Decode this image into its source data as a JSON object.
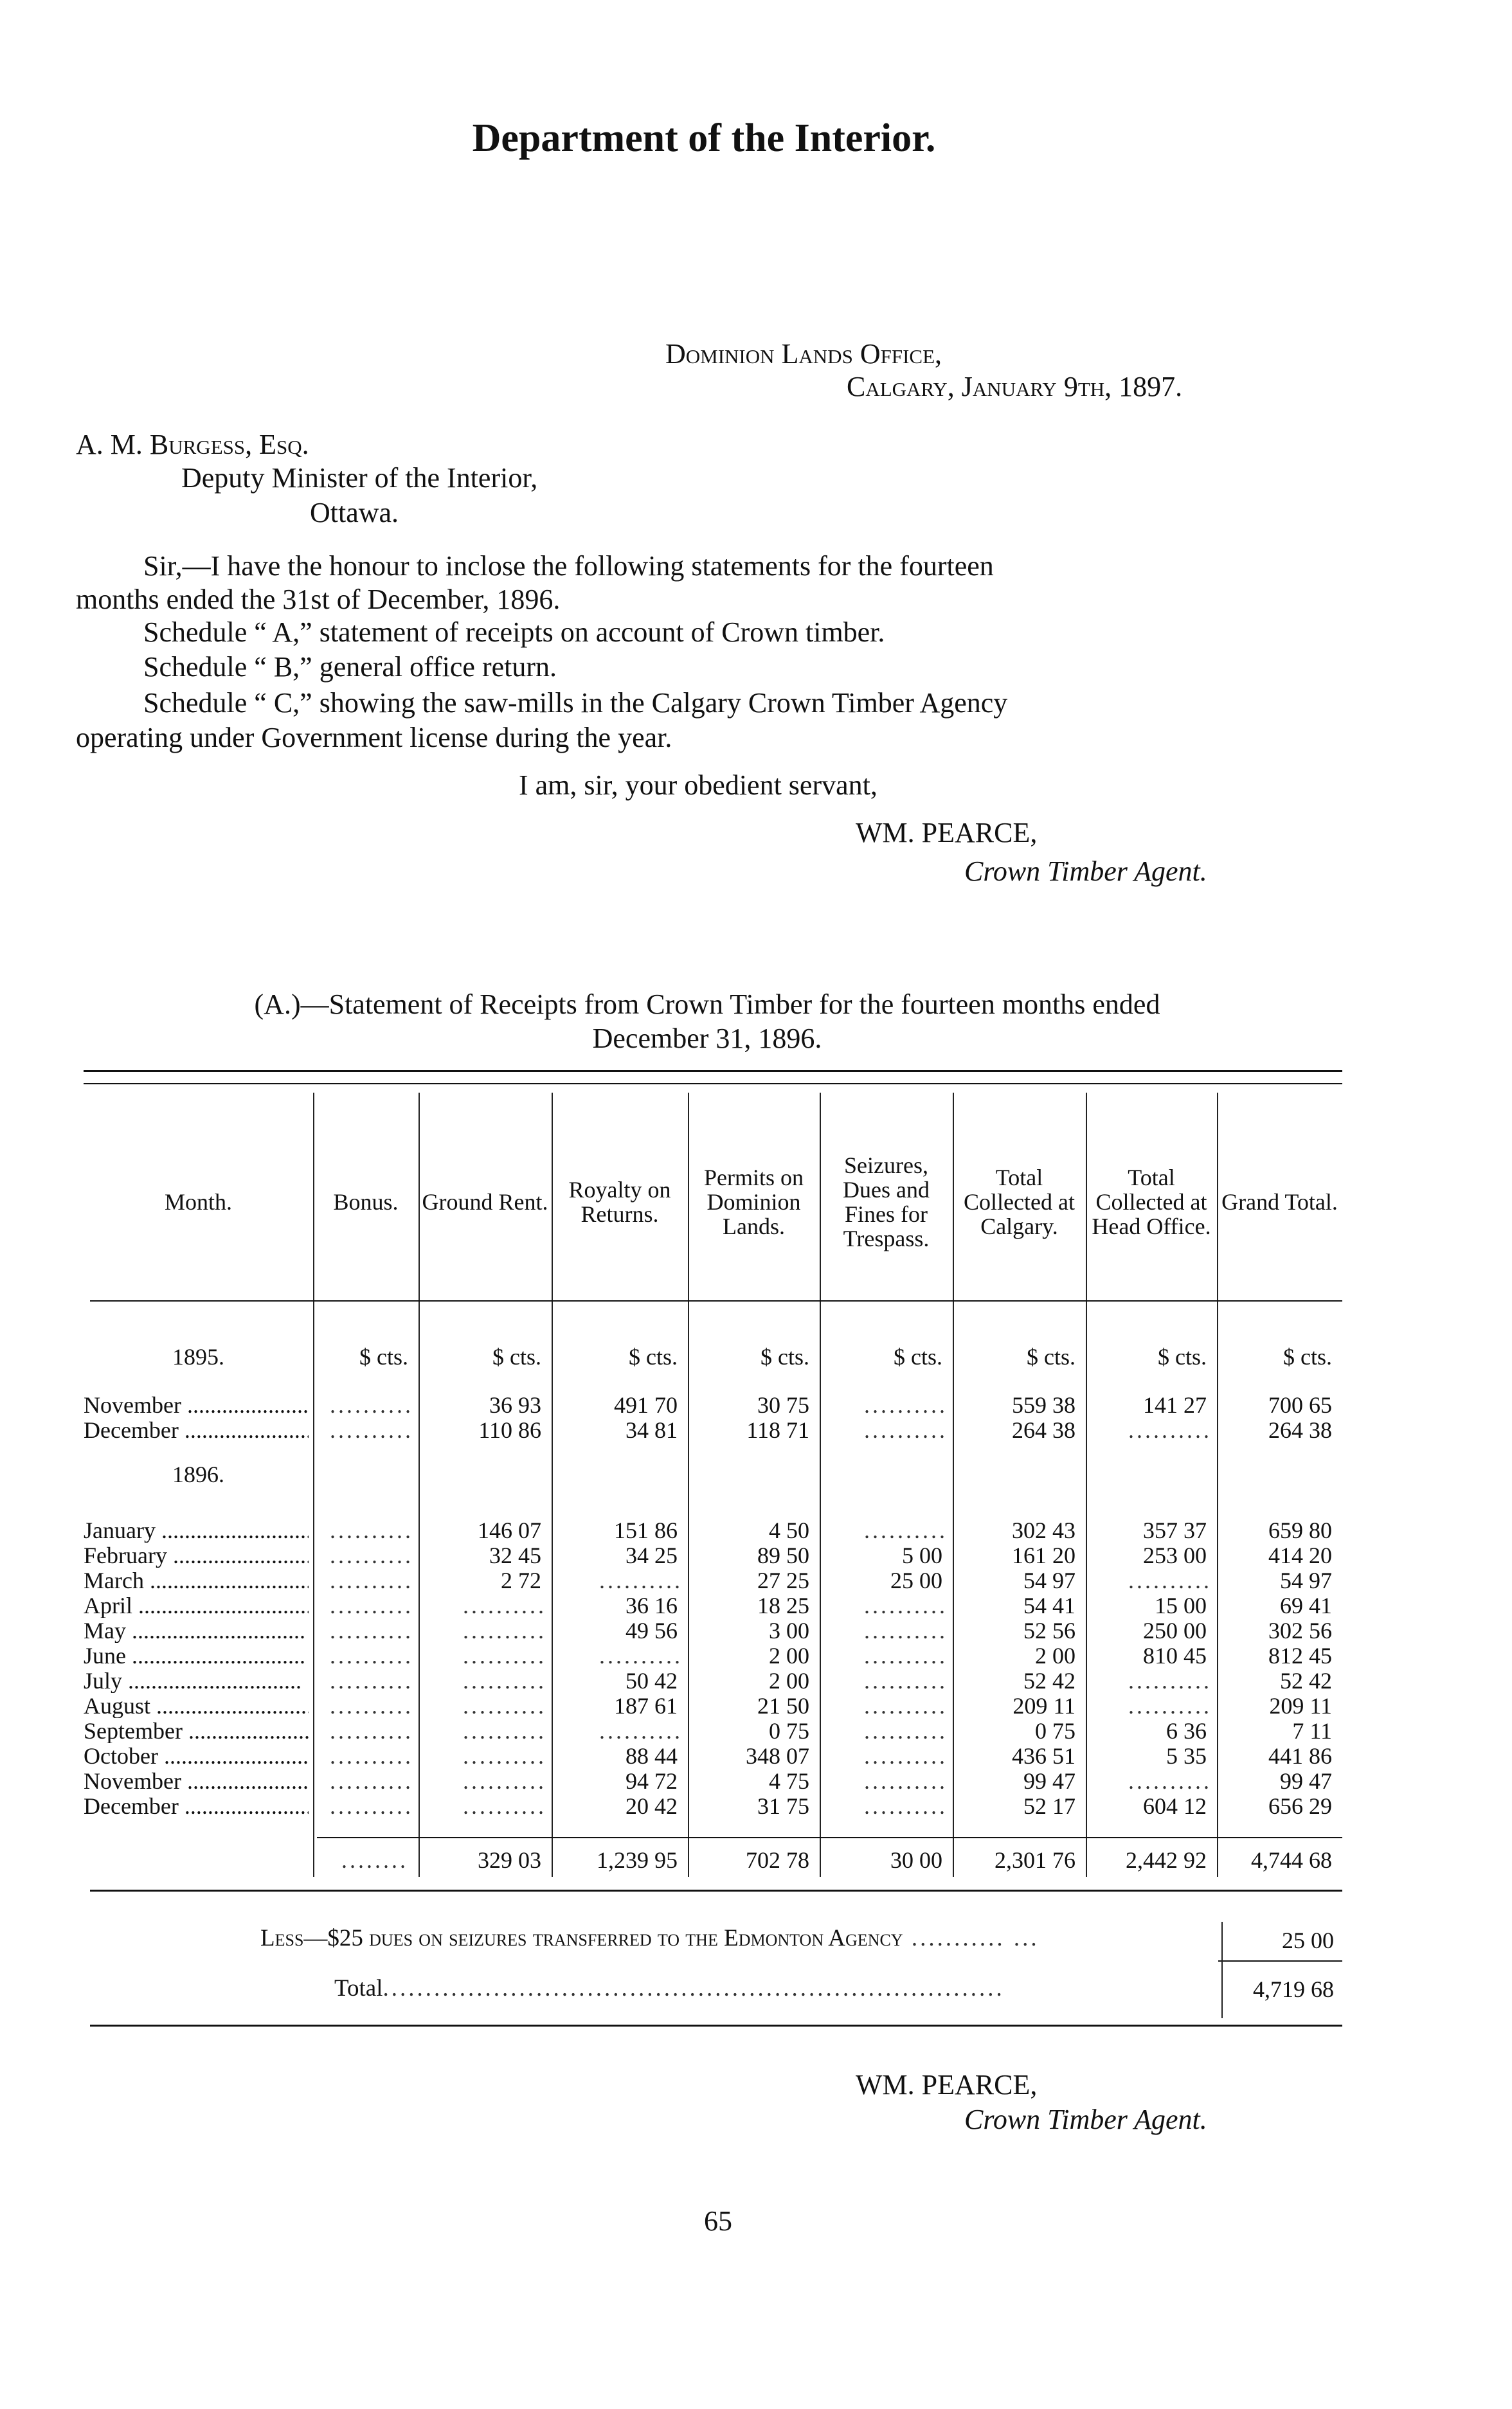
{
  "header": {
    "title": "Department of the Interior."
  },
  "letter": {
    "office": "Dominion Lands Office,",
    "place_date": "Calgary, January 9th, 1897.",
    "addressee_name": "A. M. Burgess, Esq.",
    "addressee_title": "Deputy Minister of the Interior,",
    "addressee_city": "Ottawa.",
    "para1_line1": "Sir,—I have the honour to inclose the following statements for the fourteen",
    "para1_line2": "months ended the 31st of December, 1896.",
    "schedule_a": "Schedule “ A,” statement of receipts on account of Crown timber.",
    "schedule_b": "Schedule “ B,” general office return.",
    "schedule_c_line1": "Schedule “ C,” showing the saw-mills in the Calgary Crown Timber Agency",
    "schedule_c_line2": "operating under Government license during the year.",
    "closing": "I am, sir, your obedient servant,",
    "signature": "WM. PEARCE,",
    "signature_title": "Crown Timber Agent."
  },
  "statement": {
    "title_line1": "(A.)—Statement of Receipts from Crown Timber for the fourteen months ended",
    "title_line2": "December 31, 1896.",
    "columns": [
      "Month.",
      "Bonus.",
      "Ground Rent.",
      "Royalty on Returns.",
      "Permits on Dominion Lands.",
      "Seizures, Dues and Fines for Trespass.",
      "Total Collected at Calgary.",
      "Total Collected at Head Office.",
      "Grand Total."
    ],
    "units": [
      "1895.",
      "$ cts.",
      "$ cts.",
      "$ cts.",
      "$ cts.",
      "$ cts.",
      "$ cts.",
      "$ cts.",
      "$ cts."
    ],
    "year_1896": "1896.",
    "rows_1895": [
      [
        "November",
        "",
        "36 93",
        "491 70",
        "30 75",
        "",
        "559 38",
        "141 27",
        "700 65"
      ],
      [
        "December",
        "",
        "110 86",
        "34 81",
        "118 71",
        "",
        "264 38",
        "",
        "264 38"
      ]
    ],
    "rows_1896": [
      [
        "January",
        "",
        "146 07",
        "151 86",
        "4 50",
        "",
        "302 43",
        "357 37",
        "659 80"
      ],
      [
        "February",
        "",
        "32 45",
        "34 25",
        "89 50",
        "5 00",
        "161 20",
        "253 00",
        "414 20"
      ],
      [
        "March",
        "",
        "2 72",
        "",
        "27 25",
        "25 00",
        "54 97",
        "",
        "54 97"
      ],
      [
        "April",
        "",
        "",
        "36 16",
        "18 25",
        "",
        "54 41",
        "15 00",
        "69 41"
      ],
      [
        "May",
        "",
        "",
        "49 56",
        "3 00",
        "",
        "52 56",
        "250 00",
        "302 56"
      ],
      [
        "June",
        "",
        "",
        "",
        "2 00",
        "",
        "2 00",
        "810 45",
        "812 45"
      ],
      [
        "July",
        "",
        "",
        "50 42",
        "2 00",
        "",
        "52 42",
        "",
        "52 42"
      ],
      [
        "August",
        "",
        "",
        "187 61",
        "21 50",
        "",
        "209 11",
        "",
        "209 11"
      ],
      [
        "September",
        "",
        "",
        "",
        "0 75",
        "",
        "0 75",
        "6 36",
        "7 11"
      ],
      [
        "October",
        "",
        "",
        "88 44",
        "348 07",
        "",
        "436 51",
        "5 35",
        "441 86"
      ],
      [
        "November",
        "",
        "",
        "94 72",
        "4 75",
        "",
        "99 47",
        "",
        "99 47"
      ],
      [
        "December",
        "",
        "",
        "20 42",
        "31 75",
        "",
        "52 17",
        "604 12",
        "656 29"
      ]
    ],
    "totals": [
      "",
      "",
      "329 03",
      "1,239 95",
      "702 78",
      "30 00",
      "2,301 76",
      "2,442 92",
      "4,744 68"
    ],
    "less_label": "Less—$25 dues on seizures transferred to the Edmonton Agency",
    "less_amount": "25 00",
    "total_label": "Total",
    "total_amount": "4,719 68"
  },
  "footer": {
    "signature": "WM. PEARCE,",
    "signature_title": "Crown Timber Agent.",
    "page_number": "65"
  }
}
